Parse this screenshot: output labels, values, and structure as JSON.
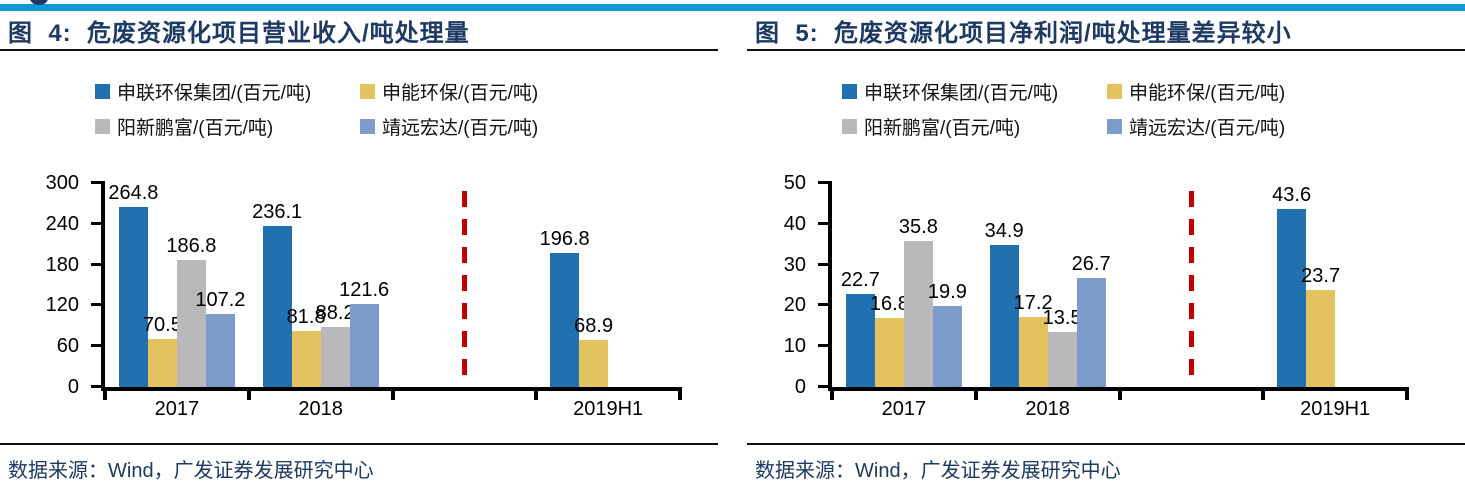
{
  "page": {
    "background": "#ffffff",
    "accent_bar_color": "#0D9AD5",
    "divider_color": "#C00000",
    "title_color": "#1C3A64"
  },
  "figures": [
    {
      "title": "图  4:  危废资源化项目营业收入/吨处理量",
      "source": "数据来源：Wind，广发证券发展研究中心"
    },
    {
      "title": "图  5:  危废资源化项目净利润/吨处理量差异较小",
      "source": "数据来源：Wind，广发证券发展研究中心"
    }
  ],
  "chart_data": [
    {
      "type": "bar",
      "title": "危废资源化项目营业收入/吨处理量",
      "categories": [
        "2017",
        "2018",
        "",
        "2019H1"
      ],
      "series": [
        {
          "name": "申联环保集团/(百元/吨)",
          "color": "#2171B0",
          "values": [
            264.8,
            236.1,
            null,
            196.8
          ]
        },
        {
          "name": "申能环保/(百元/吨)",
          "color": "#E2C360",
          "values": [
            70.5,
            81.8,
            null,
            68.9
          ]
        },
        {
          "name": "阳新鹏富/(百元/吨)",
          "color": "#B9B9BB",
          "values": [
            186.8,
            88.2,
            null,
            null
          ]
        },
        {
          "name": "靖远宏达/(百元/吨)",
          "color": "#7E9CCA",
          "values": [
            107.2,
            121.6,
            null,
            null
          ]
        }
      ],
      "ylim": [
        0,
        300
      ],
      "yticks": [
        0,
        60,
        120,
        180,
        240,
        300
      ],
      "divider": {
        "after_category": "2018",
        "color": "#C00000",
        "style": "dashed"
      },
      "legend_position": "top",
      "grid": false
    },
    {
      "type": "bar",
      "title": "危废资源化项目净利润/吨处理量差异较小",
      "categories": [
        "2017",
        "2018",
        "",
        "2019H1"
      ],
      "series": [
        {
          "name": "申联环保集团/(百元/吨)",
          "color": "#2171B0",
          "values": [
            22.7,
            34.9,
            null,
            43.6
          ]
        },
        {
          "name": "申能环保/(百元/吨)",
          "color": "#E2C360",
          "values": [
            16.8,
            17.2,
            null,
            23.7
          ]
        },
        {
          "name": "阳新鹏富/(百元/吨)",
          "color": "#B9B9BB",
          "values": [
            35.8,
            13.5,
            null,
            null
          ]
        },
        {
          "name": "靖远宏达/(百元/吨)",
          "color": "#7E9CCA",
          "values": [
            19.9,
            26.7,
            null,
            null
          ]
        }
      ],
      "ylim": [
        0,
        50
      ],
      "yticks": [
        0,
        10,
        20,
        30,
        40,
        50
      ],
      "divider": {
        "after_category": "2018",
        "color": "#C00000",
        "style": "dashed"
      },
      "legend_position": "top",
      "grid": false
    }
  ]
}
